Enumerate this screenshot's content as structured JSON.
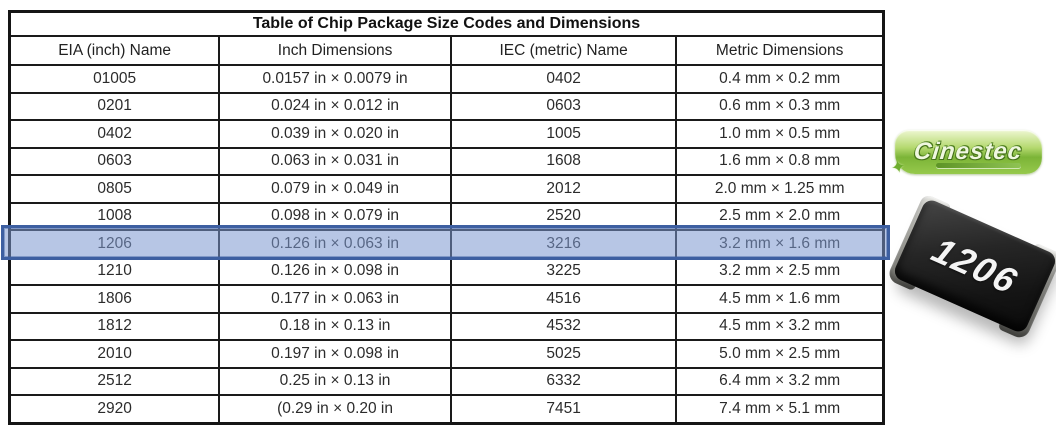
{
  "table": {
    "title": "Table of Chip Package Size Codes and Dimensions",
    "columns": [
      "EIA (inch) Name",
      "Inch Dimensions",
      "IEC (metric) Name",
      "Metric Dimensions"
    ],
    "rows": [
      [
        "01005",
        "0.0157 in × 0.0079 in",
        "0402",
        "0.4 mm × 0.2 mm"
      ],
      [
        "0201",
        "0.024 in × 0.012 in",
        "0603",
        "0.6 mm × 0.3 mm"
      ],
      [
        "0402",
        "0.039 in × 0.020 in",
        "1005",
        "1.0 mm × 0.5 mm"
      ],
      [
        "0603",
        "0.063 in × 0.031 in",
        "1608",
        "1.6 mm × 0.8 mm"
      ],
      [
        "0805",
        "0.079 in × 0.049 in",
        "2012",
        "2.0 mm × 1.25 mm"
      ],
      [
        "1008",
        "0.098 in × 0.079 in",
        "2520",
        "2.5 mm × 2.0 mm"
      ],
      [
        "1206",
        "0.126 in × 0.063 in",
        "3216",
        "3.2 mm × 1.6 mm"
      ],
      [
        "1210",
        "0.126 in × 0.098 in",
        "3225",
        "3.2 mm × 2.5 mm"
      ],
      [
        "1806",
        "0.177 in × 0.063 in",
        "4516",
        "4.5 mm × 1.6 mm"
      ],
      [
        "1812",
        "0.18 in × 0.13 in",
        "4532",
        "4.5 mm × 3.2 mm"
      ],
      [
        "2010",
        "0.197 in × 0.098 in",
        "5025",
        "5.0 mm × 2.5 mm"
      ],
      [
        "2512",
        "0.25 in × 0.13 in",
        "6332",
        "6.4 mm × 3.2 mm"
      ],
      [
        "2920",
        "(0.29 in × 0.20 in",
        "7451",
        "7.4 mm × 5.1 mm"
      ]
    ],
    "highlighted_row_index": 6,
    "highlight_fill_color": "#7b98d0",
    "highlight_border_color": "#3d5fa1"
  },
  "logo": {
    "text": "Cinestec",
    "brand_color": "#7cb437"
  },
  "chip_image": {
    "label": "1206",
    "body_color": "#1c1c1c",
    "terminal_color": "#a8a8a2"
  }
}
